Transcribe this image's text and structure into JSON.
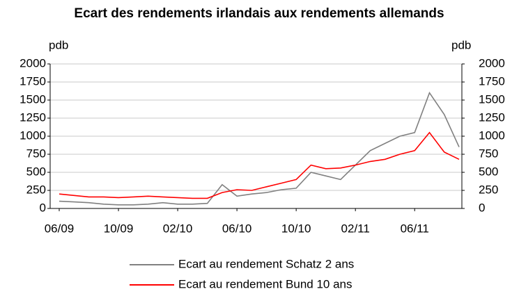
{
  "chart_data": {
    "type": "line",
    "title": "Ecart des rendements irlandais aux rendements allemands",
    "ylabel": "pdb",
    "y2label": "pdb",
    "x": [
      "2009-06",
      "2009-07",
      "2009-08",
      "2009-09",
      "2009-10",
      "2009-11",
      "2009-12",
      "2010-01",
      "2010-02",
      "2010-03",
      "2010-04",
      "2010-05",
      "2010-06",
      "2010-07",
      "2010-08",
      "2010-09",
      "2010-10",
      "2010-11",
      "2010-12",
      "2011-01",
      "2011-02",
      "2011-03",
      "2011-04",
      "2011-05",
      "2011-06",
      "2011-07",
      "2011-08",
      "2011-09"
    ],
    "series": [
      {
        "name": "Ecart au rendement Schatz 2 ans",
        "color": "#808080",
        "values": [
          100,
          90,
          80,
          60,
          50,
          50,
          60,
          80,
          60,
          60,
          70,
          330,
          170,
          200,
          220,
          260,
          280,
          500,
          450,
          400,
          600,
          800,
          900,
          1000,
          1050,
          1600,
          1300,
          850
        ]
      },
      {
        "name": "Ecart au rendement Bund 10 ans",
        "color": "#ff0000",
        "values": [
          200,
          180,
          160,
          160,
          150,
          160,
          170,
          160,
          150,
          140,
          140,
          220,
          260,
          250,
          300,
          350,
          400,
          600,
          550,
          560,
          600,
          650,
          680,
          750,
          800,
          1050,
          780,
          680
        ]
      }
    ],
    "xlim": [
      "2009-06",
      "2011-09"
    ],
    "xticks": [
      {
        "value": "2009-06",
        "label": "06/09"
      },
      {
        "value": "2009-10",
        "label": "10/09"
      },
      {
        "value": "2010-02",
        "label": "02/10"
      },
      {
        "value": "2010-06",
        "label": "06/10"
      },
      {
        "value": "2010-10",
        "label": "10/10"
      },
      {
        "value": "2011-02",
        "label": "02/11"
      },
      {
        "value": "2011-06",
        "label": "06/11"
      }
    ],
    "ylim": [
      0,
      2000
    ],
    "yticks": [
      0,
      250,
      500,
      750,
      1000,
      1250,
      1500,
      1750,
      2000
    ],
    "y2lim": [
      0,
      2000
    ],
    "y2ticks": [
      0,
      250,
      500,
      750,
      1000,
      1250,
      1500,
      1750,
      2000
    ],
    "grid": true,
    "legend": "bottom"
  }
}
